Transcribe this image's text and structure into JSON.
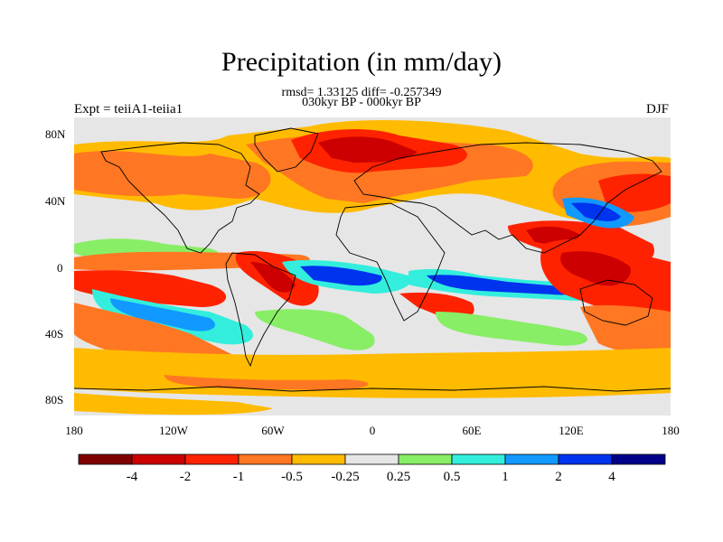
{
  "title": "Precipitation (in mm/day)",
  "stats": "rmsd= 1.33125 diff= -0.257349",
  "subtitle": "030kyr BP - 000kyr BP",
  "experiment": "Expt = teiiA1-teiia1",
  "season": "DJF",
  "lat_labels": [
    "80N",
    "40N",
    "0",
    "40S",
    "80S"
  ],
  "lon_labels": [
    "180",
    "120W",
    "60W",
    "0",
    "60E",
    "120E",
    "180"
  ],
  "colorbar": {
    "colors": [
      "#7f0000",
      "#cc0000",
      "#ff2200",
      "#ff7722",
      "#ffbb00",
      "#e6e6e6",
      "#88ee66",
      "#33eedd",
      "#1199ff",
      "#0033ee",
      "#000088"
    ],
    "labels": [
      "-4",
      "-2",
      "-1",
      "-0.5",
      "-0.25",
      "0.25",
      "0.5",
      "1",
      "2",
      "4"
    ]
  }
}
